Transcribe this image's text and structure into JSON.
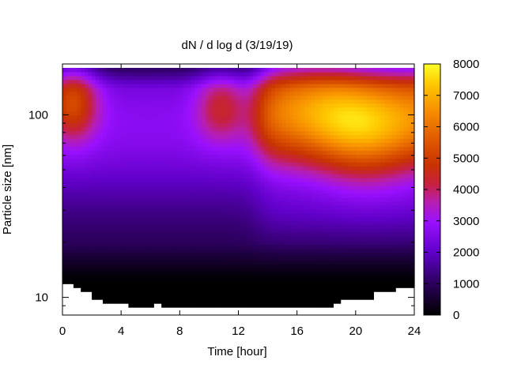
{
  "chart_data": {
    "type": "heatmap",
    "title": "dN / d log d (3/19/19)",
    "xlabel": "Time [hour]",
    "ylabel": "Particle size [nm]",
    "xlim": [
      0,
      24
    ],
    "ylim": [
      8,
      190
    ],
    "yscale": "log",
    "x_ticks": [
      0,
      4,
      8,
      12,
      16,
      20,
      24
    ],
    "y_ticks": [
      10,
      100
    ],
    "colorbar": {
      "range": [
        0,
        8000
      ],
      "ticks": [
        0,
        1000,
        2000,
        3000,
        4000,
        5000,
        6000,
        7000,
        8000
      ],
      "colormap": "black-purple-red-orange-yellow",
      "colors": [
        "#000000",
        "#5000a8",
        "#9a10ff",
        "#c3266a",
        "#c43500",
        "#e06a00",
        "#ffaa00",
        "#ffff28"
      ]
    },
    "grid": false,
    "note_blank_region": "white area at smallest sizes (below ~10 nm) where no data",
    "features": [
      {
        "time_range": [
          0,
          2
        ],
        "size_range": [
          60,
          160
        ],
        "peak_value": 4700
      },
      {
        "time_range": [
          10,
          12
        ],
        "size_range": [
          70,
          150
        ],
        "peak_value": 4300
      },
      {
        "time_range": [
          12,
          24
        ],
        "size_range": [
          40,
          200
        ],
        "peak_value": 7000,
        "peak_time": 20,
        "peak_size": 100
      }
    ]
  }
}
